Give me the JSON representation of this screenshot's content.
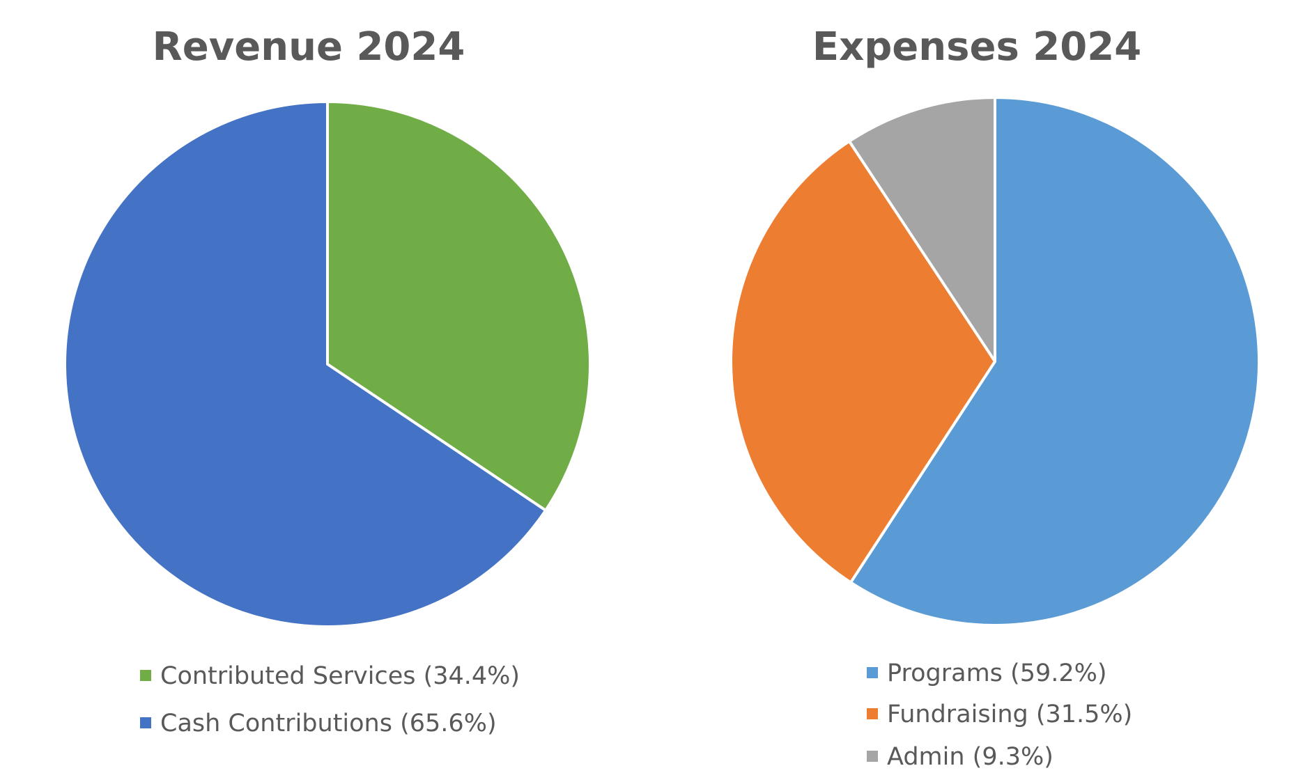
{
  "chart_data": [
    {
      "type": "pie",
      "title": "Revenue 2024",
      "start_angle_deg": 0,
      "direction": "clockwise",
      "slices": [
        {
          "label": "Contributed Services",
          "legend_text": "Contributed Services  (34.4%)",
          "value": 34.4,
          "color": "#70AD47"
        },
        {
          "label": "Cash Contributions",
          "legend_text": "Cash Contributions  (65.6%)",
          "value": 65.6,
          "color": "#4472C4"
        }
      ],
      "legend_position": "bottom"
    },
    {
      "type": "pie",
      "title": "Expenses 2024",
      "start_angle_deg": 0,
      "direction": "clockwise",
      "slices": [
        {
          "label": "Programs",
          "legend_text": "Programs (59.2%)",
          "value": 59.2,
          "color": "#5B9BD5"
        },
        {
          "label": "Fundraising",
          "legend_text": "Fundraising (31.5%)",
          "value": 31.5,
          "color": "#ED7D31"
        },
        {
          "label": "Admin",
          "legend_text": "Admin (9.3%)",
          "value": 9.3,
          "color": "#A5A5A5"
        }
      ],
      "legend_position": "bottom"
    }
  ]
}
